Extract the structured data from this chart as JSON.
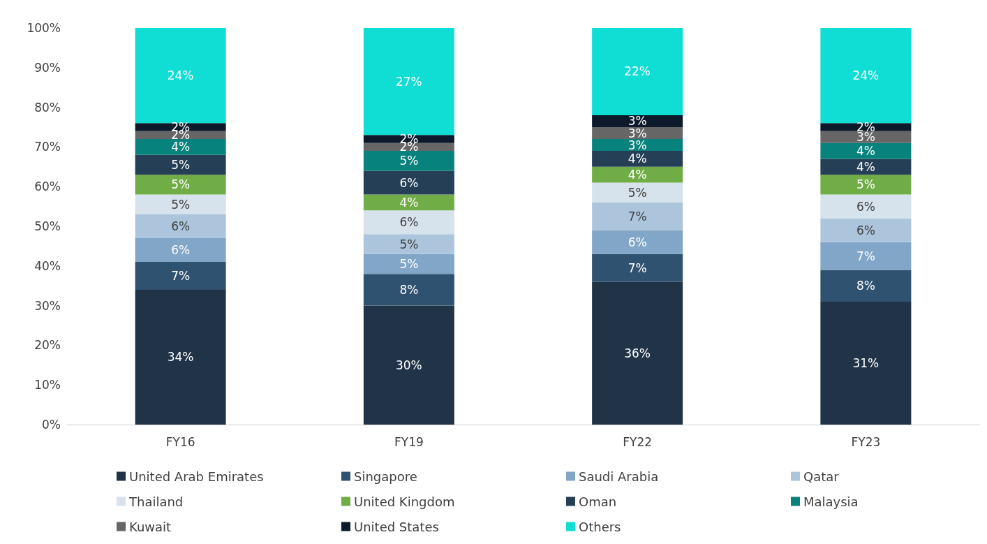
{
  "chart_data": {
    "type": "bar",
    "stacked": true,
    "data_labels": true,
    "grid": false,
    "legend": "bottom",
    "categories": [
      "FY16",
      "FY19",
      "FY22",
      "FY23"
    ],
    "ylim": [
      0,
      100
    ],
    "yticks": [
      {
        "value": 0,
        "label": "0%"
      },
      {
        "value": 10,
        "label": "10%"
      },
      {
        "value": 20,
        "label": "20%"
      },
      {
        "value": 30,
        "label": "30%"
      },
      {
        "value": 40,
        "label": "40%"
      },
      {
        "value": 50,
        "label": "50%"
      },
      {
        "value": 60,
        "label": "60%"
      },
      {
        "value": 70,
        "label": "70%"
      },
      {
        "value": 80,
        "label": "80%"
      },
      {
        "value": 90,
        "label": "90%"
      },
      {
        "value": 100,
        "label": "100%"
      }
    ],
    "series": [
      {
        "name": "United Arab Emirates",
        "color": "#213447",
        "values": [
          34,
          30,
          36,
          31
        ],
        "value_labels": [
          "34%",
          "30%",
          "36%",
          "31%"
        ]
      },
      {
        "name": "Singapore",
        "color": "#2f5270",
        "values": [
          7,
          8,
          7,
          8
        ],
        "value_labels": [
          "7%",
          "8%",
          "7%",
          "8%"
        ]
      },
      {
        "name": "Saudi Arabia",
        "color": "#81a6c8",
        "values": [
          6,
          5,
          6,
          7
        ],
        "value_labels": [
          "6%",
          "5%",
          "6%",
          "7%"
        ]
      },
      {
        "name": "Qatar",
        "color": "#adc5dc",
        "values": [
          6,
          5,
          7,
          6
        ],
        "value_labels": [
          "6%",
          "5%",
          "7%",
          "6%"
        ]
      },
      {
        "name": "Thailand",
        "color": "#d6e2ec",
        "values": [
          5,
          6,
          5,
          6
        ],
        "value_labels": [
          "5%",
          "6%",
          "5%",
          "6%"
        ]
      },
      {
        "name": "United Kingdom",
        "color": "#70ad47",
        "values": [
          5,
          4,
          4,
          5
        ],
        "value_labels": [
          "5%",
          "4%",
          "4%",
          "5%"
        ]
      },
      {
        "name": "Oman",
        "color": "#253f56",
        "values": [
          5,
          6,
          4,
          4
        ],
        "value_labels": [
          "5%",
          "6%",
          "4%",
          "4%"
        ]
      },
      {
        "name": "Malaysia",
        "color": "#08827c",
        "values": [
          4,
          5,
          3,
          4
        ],
        "value_labels": [
          "4%",
          "5%",
          "3%",
          "4%"
        ]
      },
      {
        "name": "Kuwait",
        "color": "#666666",
        "values": [
          2,
          2,
          3,
          3
        ],
        "value_labels": [
          "2%",
          "2%",
          "3%",
          "3%"
        ]
      },
      {
        "name": "United States",
        "color": "#0c1a2b",
        "values": [
          2,
          2,
          3,
          2
        ],
        "value_labels": [
          "2%",
          "2%",
          "3%",
          "2%"
        ]
      },
      {
        "name": "Others",
        "color": "#10ded4",
        "values": [
          24,
          27,
          22,
          24
        ],
        "value_labels": [
          "24%",
          "27%",
          "22%",
          "24%"
        ]
      }
    ]
  }
}
